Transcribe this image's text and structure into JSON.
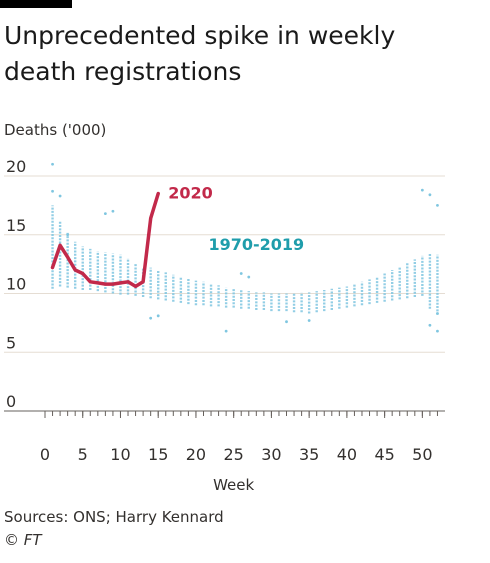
{
  "header": {
    "title": "Unprecedented spike in weekly death registrations"
  },
  "footer": {
    "source": "Sources: ONS; Harry Kennard",
    "credit": "© FT"
  },
  "colors": {
    "series_2020": "#c2294a",
    "historic": "#7fc6e0",
    "historic_label": "#1f9dab",
    "grid": "#e5ddd3",
    "axis": "#66605c",
    "text": "#33302e"
  },
  "chart_data": {
    "type": "scatter",
    "title": "Unprecedented spike in weekly death registrations",
    "ylabel": "Deaths ('000)",
    "xlabel": "Week",
    "xlim": [
      0,
      53
    ],
    "ylim": [
      0,
      20
    ],
    "xticks": [
      0,
      5,
      10,
      15,
      20,
      25,
      30,
      35,
      40,
      45,
      50
    ],
    "yticks": [
      0,
      5,
      10,
      15,
      20
    ],
    "grid": true,
    "series": [
      {
        "name": "2020",
        "type": "line",
        "x": [
          1,
          2,
          3,
          4,
          5,
          6,
          7,
          8,
          9,
          10,
          11,
          12,
          13,
          14,
          15
        ],
        "values": [
          12.2,
          14.1,
          13.1,
          12.0,
          11.7,
          11.0,
          10.9,
          10.8,
          10.8,
          10.9,
          11.0,
          10.6,
          11.0,
          16.4,
          18.5
        ]
      },
      {
        "name": "1970-2019",
        "type": "range",
        "x": [
          1,
          2,
          3,
          4,
          5,
          6,
          7,
          8,
          9,
          10,
          11,
          12,
          13,
          14,
          15,
          16,
          17,
          18,
          19,
          20,
          21,
          22,
          23,
          24,
          25,
          26,
          27,
          28,
          29,
          30,
          31,
          32,
          33,
          34,
          35,
          36,
          37,
          38,
          39,
          40,
          41,
          42,
          43,
          44,
          45,
          46,
          47,
          48,
          49,
          50,
          51,
          52
        ],
        "low": [
          10.4,
          10.6,
          10.5,
          10.4,
          10.3,
          10.3,
          10.2,
          10.1,
          10.0,
          9.9,
          9.9,
          9.8,
          9.7,
          9.6,
          9.5,
          9.4,
          9.3,
          9.2,
          9.1,
          9.0,
          9.0,
          8.9,
          8.9,
          8.8,
          8.8,
          8.7,
          8.7,
          8.6,
          8.6,
          8.5,
          8.5,
          8.5,
          8.4,
          8.4,
          8.3,
          8.4,
          8.5,
          8.6,
          8.7,
          8.8,
          8.9,
          9.0,
          9.1,
          9.2,
          9.3,
          9.4,
          9.5,
          9.6,
          9.7,
          9.8,
          8.7,
          8.2
        ],
        "high": [
          17.5,
          16.2,
          15.2,
          14.4,
          14.0,
          13.8,
          13.6,
          13.5,
          13.4,
          13.3,
          13.0,
          12.6,
          12.2,
          12.2,
          12.0,
          11.8,
          11.6,
          11.4,
          11.3,
          11.1,
          11.0,
          10.8,
          10.7,
          10.5,
          10.4,
          10.3,
          10.2,
          10.1,
          10.1,
          10.0,
          10.0,
          10.0,
          10.0,
          10.1,
          10.1,
          10.2,
          10.3,
          10.4,
          10.5,
          10.6,
          10.8,
          11.0,
          11.2,
          11.4,
          11.7,
          12.0,
          12.3,
          12.6,
          12.9,
          13.2,
          13.4,
          13.3
        ],
        "outliers": [
          {
            "x": 1,
            "y": 21.0
          },
          {
            "x": 1,
            "y": 18.7
          },
          {
            "x": 2,
            "y": 18.3
          },
          {
            "x": 3,
            "y": 15.0
          },
          {
            "x": 8,
            "y": 16.8
          },
          {
            "x": 9,
            "y": 17.0
          },
          {
            "x": 14,
            "y": 7.9
          },
          {
            "x": 15,
            "y": 8.1
          },
          {
            "x": 24,
            "y": 6.8
          },
          {
            "x": 26,
            "y": 11.7
          },
          {
            "x": 27,
            "y": 11.4
          },
          {
            "x": 32,
            "y": 7.6
          },
          {
            "x": 35,
            "y": 7.7
          },
          {
            "x": 50,
            "y": 18.8
          },
          {
            "x": 51,
            "y": 18.4
          },
          {
            "x": 52,
            "y": 17.5
          },
          {
            "x": 51,
            "y": 7.3
          },
          {
            "x": 52,
            "y": 6.8
          },
          {
            "x": 52,
            "y": 8.3
          }
        ]
      }
    ],
    "labels": [
      {
        "text": "2020",
        "series": "2020"
      },
      {
        "text": "1970-2019",
        "series": "1970-2019"
      }
    ]
  }
}
